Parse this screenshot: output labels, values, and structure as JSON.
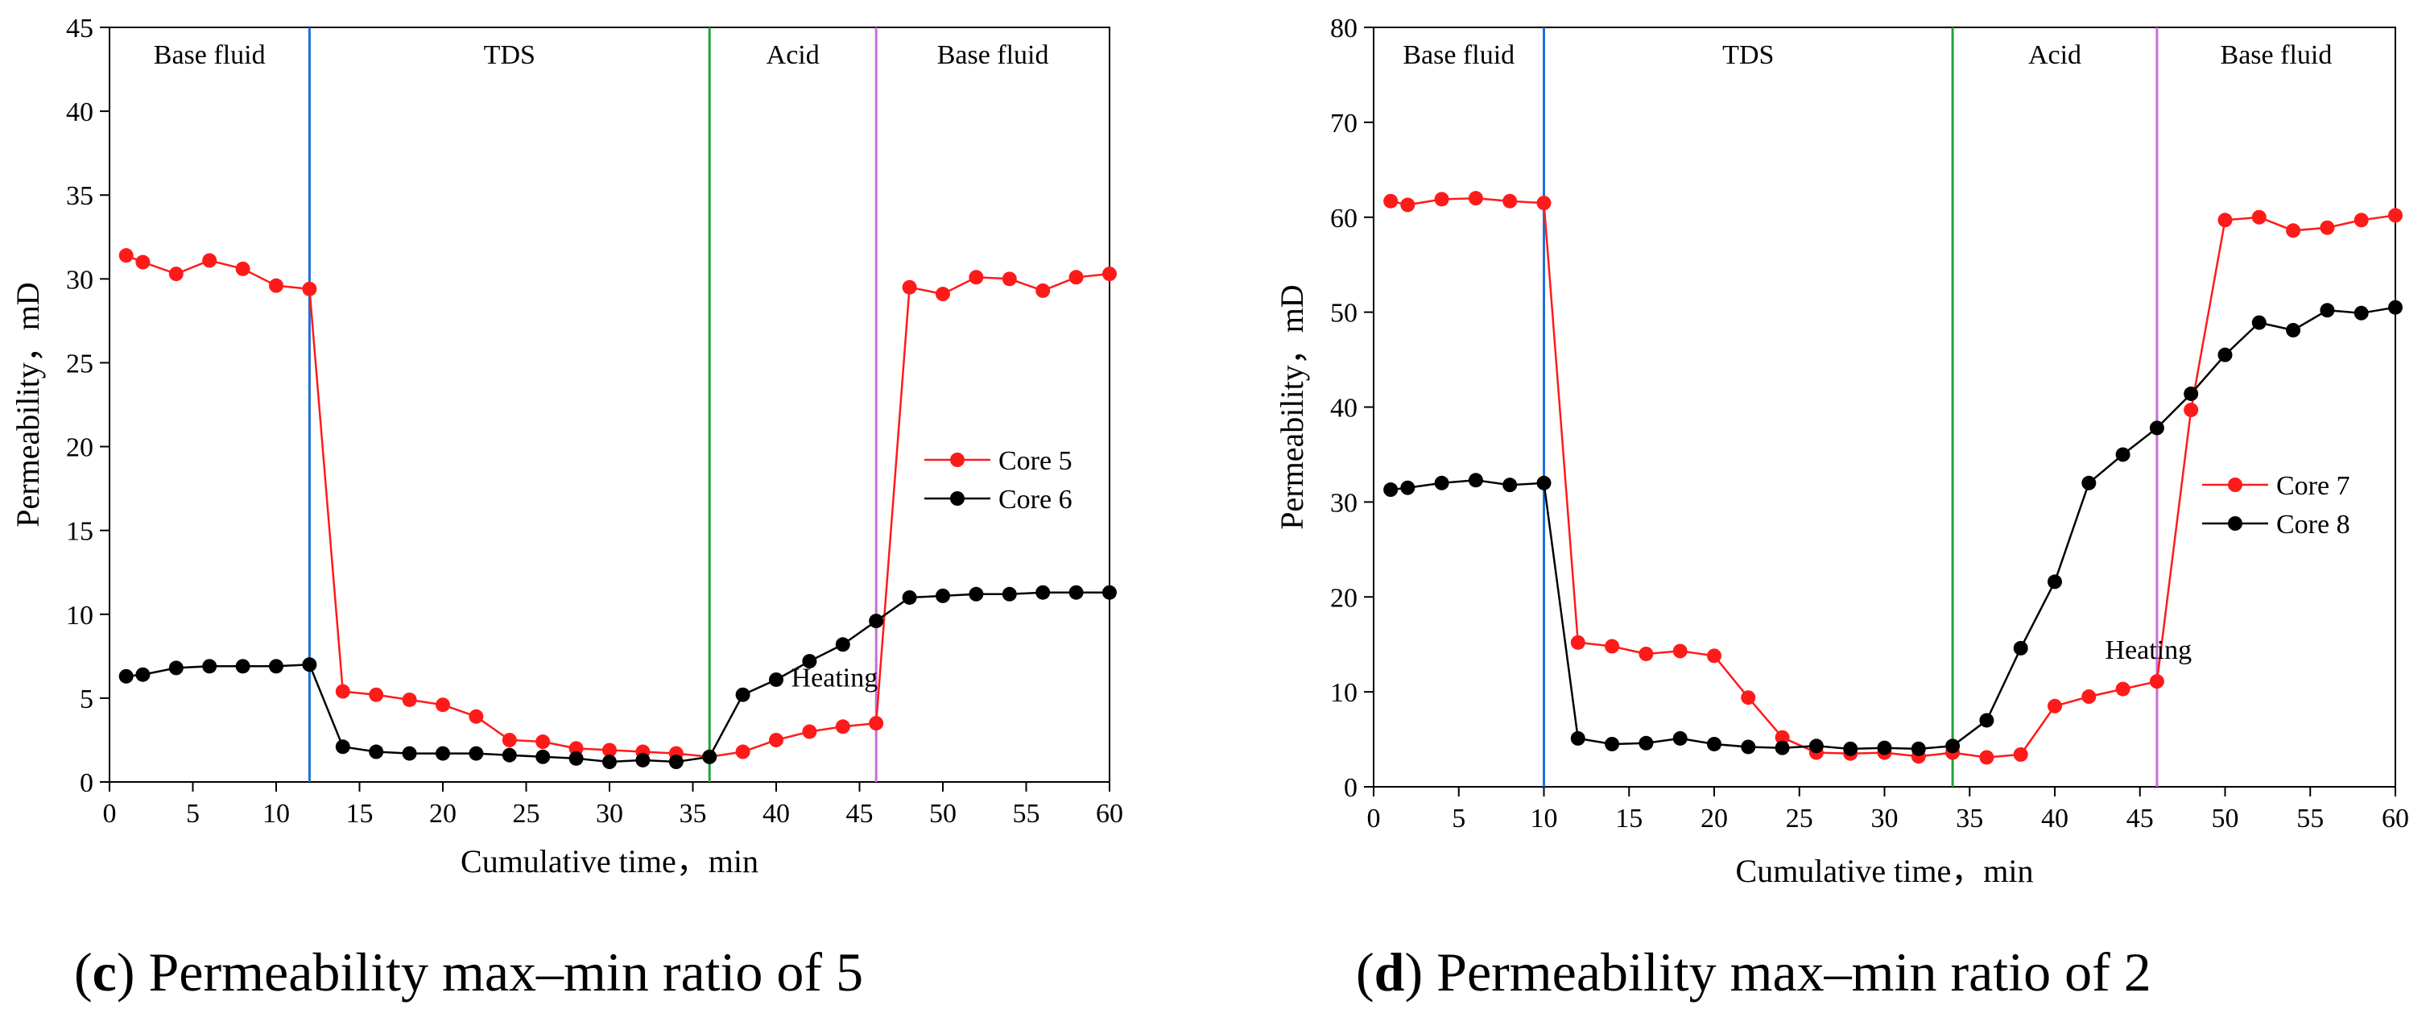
{
  "chart_data": [
    {
      "type": "line",
      "panel": "c",
      "caption_letter": "c",
      "caption_text": "Permeability max–min ratio of 5",
      "xlabel": "Cumulative time，min",
      "ylabel": "Permeability，mD",
      "xlim": [
        0,
        60
      ],
      "ylim": [
        0,
        45
      ],
      "xticks": [
        0,
        5,
        10,
        15,
        20,
        25,
        30,
        35,
        40,
        45,
        50,
        55,
        60
      ],
      "yticks": [
        0,
        5,
        10,
        15,
        20,
        25,
        30,
        35,
        40,
        45
      ],
      "stages": [
        {
          "label": "Base fluid",
          "from": 0,
          "to": 12
        },
        {
          "label": "TDS",
          "from": 12,
          "to": 36
        },
        {
          "label": "Acid",
          "from": 36,
          "to": 46
        },
        {
          "label": "Base fluid",
          "from": 46,
          "to": 60
        }
      ],
      "dividers": [
        {
          "x": 12,
          "color": "#1f6fd6"
        },
        {
          "x": 36,
          "color": "#22a43a"
        },
        {
          "x": 46,
          "color": "#c86cd8"
        }
      ],
      "annotation": {
        "text": "Heating",
        "x": 43.5,
        "y": 5.7
      },
      "series": [
        {
          "name": "Core 5",
          "color": "#ff1a1a",
          "x": [
            1,
            2,
            4,
            6,
            8,
            10,
            12,
            14,
            16,
            18,
            20,
            22,
            24,
            26,
            28,
            30,
            32,
            34,
            36,
            38,
            40,
            42,
            44,
            46,
            48,
            50,
            52,
            54,
            56,
            58,
            60
          ],
          "y": [
            31.4,
            31.0,
            30.3,
            31.1,
            30.6,
            29.6,
            29.4,
            5.4,
            5.2,
            4.9,
            4.6,
            3.9,
            2.5,
            2.4,
            2.0,
            1.9,
            1.8,
            1.7,
            1.5,
            1.8,
            2.5,
            3.0,
            3.3,
            3.5,
            29.5,
            29.1,
            30.1,
            30.0,
            29.3,
            30.1,
            30.3
          ]
        },
        {
          "name": "Core 6",
          "color": "#000000",
          "x": [
            1,
            2,
            4,
            6,
            8,
            10,
            12,
            14,
            16,
            18,
            20,
            22,
            24,
            26,
            28,
            30,
            32,
            34,
            36,
            38,
            40,
            42,
            44,
            46,
            48,
            50,
            52,
            54,
            56,
            58,
            60
          ],
          "y": [
            6.3,
            6.4,
            6.8,
            6.9,
            6.9,
            6.9,
            7.0,
            2.1,
            1.8,
            1.7,
            1.7,
            1.7,
            1.6,
            1.5,
            1.4,
            1.2,
            1.3,
            1.2,
            1.5,
            5.2,
            6.1,
            7.2,
            8.2,
            9.6,
            11.0,
            11.1,
            11.2,
            11.2,
            11.3,
            11.3,
            11.3
          ]
        }
      ],
      "legend_position": "right"
    },
    {
      "type": "line",
      "panel": "d",
      "caption_letter": "d",
      "caption_text": "Permeability max–min ratio of 2",
      "xlabel": "Cumulative time，min",
      "ylabel": "Permeability，mD",
      "xlim": [
        0,
        60
      ],
      "ylim": [
        0,
        80
      ],
      "xticks": [
        0,
        5,
        10,
        15,
        20,
        25,
        30,
        35,
        40,
        45,
        50,
        55,
        60
      ],
      "yticks": [
        0,
        10,
        20,
        30,
        40,
        50,
        60,
        70,
        80
      ],
      "stages": [
        {
          "label": "Base fluid",
          "from": 0,
          "to": 10
        },
        {
          "label": "TDS",
          "from": 10,
          "to": 34
        },
        {
          "label": "Acid",
          "from": 34,
          "to": 46
        },
        {
          "label": "Base fluid",
          "from": 46,
          "to": 60
        }
      ],
      "dividers": [
        {
          "x": 10,
          "color": "#1f6fd6"
        },
        {
          "x": 34,
          "color": "#22a43a"
        },
        {
          "x": 46,
          "color": "#c86cd8"
        }
      ],
      "annotation": {
        "text": "Heating",
        "x": 45.5,
        "y": 13.5
      },
      "series": [
        {
          "name": "Core 7",
          "color": "#ff1a1a",
          "x": [
            1,
            2,
            4,
            6,
            8,
            10,
            12,
            14,
            16,
            18,
            20,
            22,
            24,
            26,
            28,
            30,
            32,
            34,
            36,
            38,
            40,
            42,
            44,
            46,
            48,
            50,
            52,
            54,
            56,
            58,
            60
          ],
          "y": [
            61.7,
            61.3,
            61.9,
            62.0,
            61.7,
            61.5,
            15.2,
            14.8,
            14.0,
            14.3,
            13.8,
            9.4,
            5.2,
            3.6,
            3.5,
            3.6,
            3.2,
            3.6,
            3.1,
            3.4,
            8.5,
            9.5,
            10.3,
            11.1,
            39.7,
            59.7,
            60.0,
            58.6,
            58.9,
            59.7,
            60.2
          ]
        },
        {
          "name": "Core 8",
          "color": "#000000",
          "x": [
            1,
            2,
            4,
            6,
            8,
            10,
            12,
            14,
            16,
            18,
            20,
            22,
            24,
            26,
            28,
            30,
            32,
            34,
            36,
            38,
            40,
            42,
            44,
            46,
            48,
            50,
            52,
            54,
            56,
            58,
            60
          ],
          "y": [
            31.3,
            31.5,
            32.0,
            32.3,
            31.8,
            32.0,
            5.1,
            4.5,
            4.6,
            5.1,
            4.5,
            4.2,
            4.1,
            4.3,
            4.0,
            4.1,
            4.0,
            4.3,
            7.0,
            14.6,
            21.6,
            32.0,
            35.0,
            37.8,
            41.4,
            45.5,
            48.9,
            48.1,
            50.2,
            49.9,
            50.5
          ]
        }
      ],
      "legend_position": "right"
    }
  ]
}
